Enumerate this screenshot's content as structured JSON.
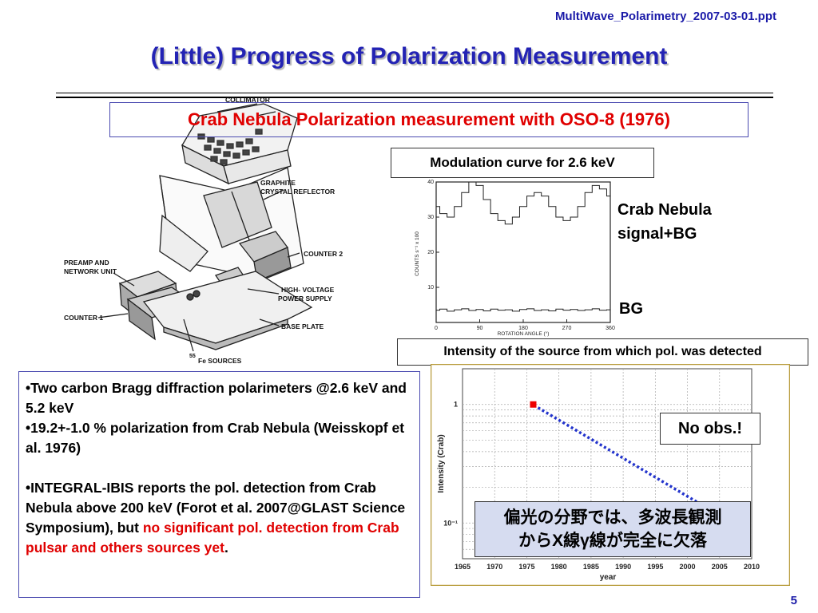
{
  "header": {
    "filename": "MultiWave_Polarimetry_2007-03-01.ppt",
    "title": "(Little) Progress of Polarization Measurement"
  },
  "subtitle": "Crab Nebula Polarization measurement with OSO-8 (1976)",
  "instrument": {
    "labels": {
      "collimator": "COLLIMATOR",
      "graphite": "GRAPHITE",
      "reflector": "CRYSTAL REFLECTOR",
      "preamp": "PREAMP AND",
      "network": "NETWORK UNIT",
      "counter2": "COUNTER 2",
      "hv1": "HIGH- VOLTAGE",
      "hv2": "POWER SUPPLY",
      "counter1": "COUNTER 1",
      "baseplate": "BASE PLATE",
      "fe_num": "55",
      "fe_text": "Fe SOURCES"
    }
  },
  "modulation": {
    "label": "Modulation curve for 2.6 keV",
    "crab_label_1": "Crab Nebula",
    "crab_label_2": "signal+BG",
    "bg_label": "BG"
  },
  "intensity_label": "Intensity of the source from which pol. was detected",
  "bullets": {
    "b1": "•Two carbon Bragg diffraction polarimeters @2.6 keV and 5.2 keV",
    "b2": "•19.2+-1.0 % polarization from Crab Nebula (Weisskopf et al. 1976)",
    "b3_normal": "•INTEGRAL-IBIS reports the pol. detection from Crab Nebula above 200 keV (Forot et al. 2007@GLAST Science Symposium), but ",
    "b3_red": "no significant pol. detection from Crab pulsar and others sources yet",
    "b3_end": "."
  },
  "callouts": {
    "no_obs": "No obs.!",
    "jp_line1": "偏光の分野では、多波長観測",
    "jp_line2": "からX線γ線が完全に欠落"
  },
  "page_number": "5",
  "chart_data": [
    {
      "type": "line",
      "title": "",
      "xlabel": "ROTATION ANGLE (°)",
      "ylabel": "COUNTS s⁻¹ x 100",
      "xlim": [
        0,
        360
      ],
      "ylim": [
        0,
        40
      ],
      "xticks": [
        0,
        90,
        180,
        270,
        360
      ],
      "yticks": [
        10,
        20,
        30,
        40
      ],
      "series": [
        {
          "name": "Crab Nebula signal+BG",
          "x": [
            0,
            15,
            30,
            45,
            60,
            75,
            90,
            105,
            120,
            135,
            150,
            165,
            180,
            195,
            210,
            225,
            240,
            255,
            270,
            285,
            300,
            315,
            330,
            345,
            360
          ],
          "values": [
            33,
            31,
            30,
            33,
            37,
            40,
            39,
            35,
            31,
            29,
            28,
            30,
            33,
            36,
            37,
            36,
            33,
            30,
            29,
            30,
            33,
            37,
            39,
            38,
            36
          ]
        },
        {
          "name": "BG",
          "x": [
            0,
            15,
            30,
            45,
            60,
            75,
            90,
            105,
            120,
            135,
            150,
            165,
            180,
            195,
            210,
            225,
            240,
            255,
            270,
            285,
            300,
            315,
            330,
            345,
            360
          ],
          "values": [
            3.5,
            3.8,
            3.2,
            3.6,
            3.9,
            3.4,
            3.7,
            3.3,
            3.8,
            3.5,
            3.6,
            3.2,
            3.7,
            3.9,
            3.4,
            3.6,
            3.3,
            3.8,
            3.5,
            3.7,
            3.4,
            3.6,
            3.9,
            3.5,
            3.6
          ]
        }
      ]
    },
    {
      "type": "scatter",
      "title": "",
      "xlabel": "year",
      "ylabel": "Intensity (Crab)",
      "xlim": [
        1965,
        2010
      ],
      "ylim": [
        0.05,
        2
      ],
      "yscale": "log",
      "xticks": [
        1965,
        1970,
        1975,
        1980,
        1985,
        1990,
        1995,
        2000,
        2005,
        2010
      ],
      "ytick_labels": [
        "1",
        "10⁻¹"
      ],
      "grid": true,
      "points": [
        {
          "x": 1976,
          "y": 1
        }
      ],
      "trend": {
        "from": {
          "x": 1976,
          "y": 1
        },
        "to": {
          "x": 2007,
          "y": 0.1
        }
      }
    }
  ]
}
